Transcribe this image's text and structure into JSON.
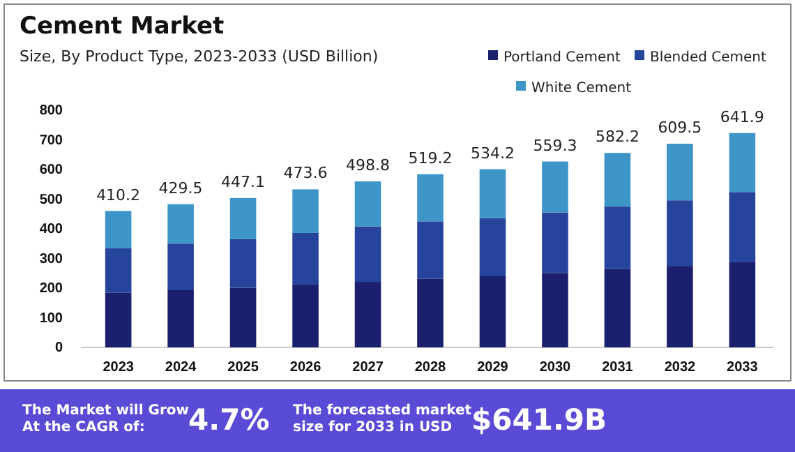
{
  "chart_data": {
    "type": "bar",
    "title": "Cement Market",
    "subtitle": "Size, By Product Type, 2023-2033 (USD Billion)",
    "categories": [
      "2023",
      "2024",
      "2025",
      "2026",
      "2027",
      "2028",
      "2029",
      "2030",
      "2031",
      "2032",
      "2033"
    ],
    "series": [
      {
        "name": "Portland Cement",
        "color": "#1a1f6e",
        "values": [
          185,
          193,
          201,
          212,
          221,
          232,
          240,
          251,
          264,
          275,
          287
        ]
      },
      {
        "name": "Blended Cement",
        "color": "#26449c",
        "values": [
          149,
          157,
          164,
          174,
          187,
          193,
          196,
          204,
          211,
          221,
          237
        ]
      },
      {
        "name": "White Cement",
        "color": "#3d95c8",
        "values": [
          126,
          133,
          139,
          147,
          152,
          159,
          165,
          172,
          181,
          191,
          199
        ]
      }
    ],
    "stacked": true,
    "ylim": [
      0,
      800
    ],
    "yticks": [
      0,
      100,
      200,
      300,
      400,
      500,
      600,
      700,
      800
    ],
    "legend": "top right",
    "grid": false,
    "annotations": [
      "The Market will Grow At the CAGR of:",
      "4.7%",
      "The forecasted market size for 2033 in USD",
      "$641.9B",
      {
        "text": "410.2",
        "x": "2023",
        "y": 460
      },
      {
        "text": "429.5",
        "x": "2024",
        "y": 483
      },
      {
        "text": "447.1",
        "x": "2025",
        "y": 504
      },
      {
        "text": "473.6",
        "x": "2026",
        "y": 533
      },
      {
        "text": "498.8",
        "x": "2027",
        "y": 560
      },
      {
        "text": "519.2",
        "x": "2028",
        "y": 584
      },
      {
        "text": "534.2",
        "x": "2029",
        "y": 601
      },
      {
        "text": "559.3",
        "x": "2030",
        "y": 627
      },
      {
        "text": "582.2",
        "x": "2031",
        "y": 656
      },
      {
        "text": "609.5",
        "x": "2032",
        "y": 687
      },
      {
        "text": "641.9",
        "x": "2033",
        "y": 723
      }
    ]
  }
}
